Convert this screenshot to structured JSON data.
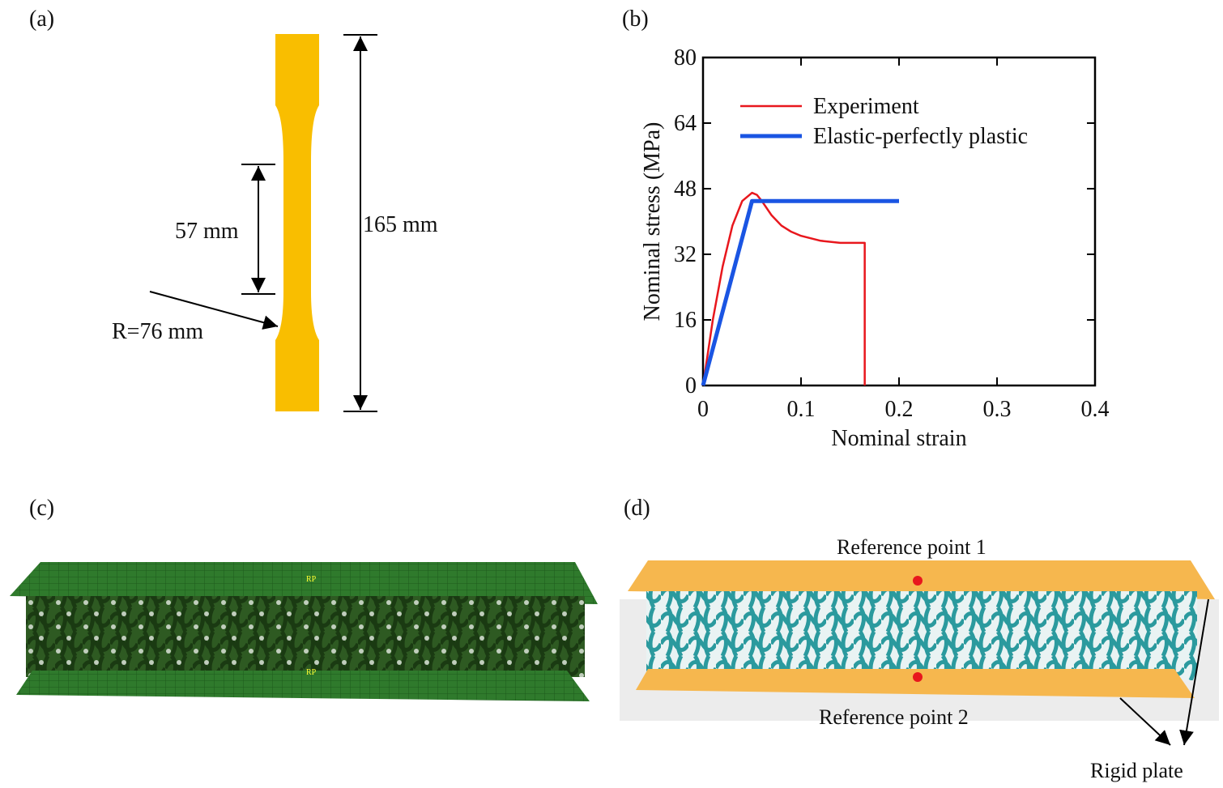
{
  "panels": {
    "a": "(a)",
    "b": "(b)",
    "c": "(c)",
    "d": "(d)"
  },
  "specimen": {
    "gauge_length": "57 mm",
    "total_length": "165 mm",
    "radius": "R=76 mm"
  },
  "model_c": {
    "rp_top": "RP",
    "rp_bottom": "RP"
  },
  "model_d": {
    "reference_top": "Reference point 1",
    "reference_bottom": "Reference point 2",
    "plate": "Rigid plate"
  },
  "chart_data": {
    "type": "line",
    "xlabel": "Nominal strain",
    "ylabel": "Nominal stress (MPa)",
    "xlim": [
      0,
      0.4
    ],
    "ylim": [
      0,
      80
    ],
    "xticks": [
      0,
      0.1,
      0.2,
      0.3,
      0.4
    ],
    "yticks": [
      0,
      16,
      32,
      48,
      64,
      80
    ],
    "legend": "upper left",
    "series": [
      {
        "name": "Experiment",
        "color": "#e8171d",
        "x": [
          0,
          0.005,
          0.01,
          0.02,
          0.03,
          0.04,
          0.05,
          0.055,
          0.06,
          0.07,
          0.08,
          0.09,
          0.1,
          0.12,
          0.14,
          0.16,
          0.165,
          0.165
        ],
        "values": [
          0,
          8,
          16,
          29,
          39,
          45,
          47,
          46.5,
          45,
          41.5,
          39,
          37.5,
          36.5,
          35.3,
          34.8,
          34.8,
          34.8,
          0
        ]
      },
      {
        "name": "Elastic-perfectly plastic",
        "color": "#1a55e3",
        "x": [
          0,
          0.05,
          0.2
        ],
        "values": [
          0,
          45,
          45
        ]
      }
    ]
  }
}
